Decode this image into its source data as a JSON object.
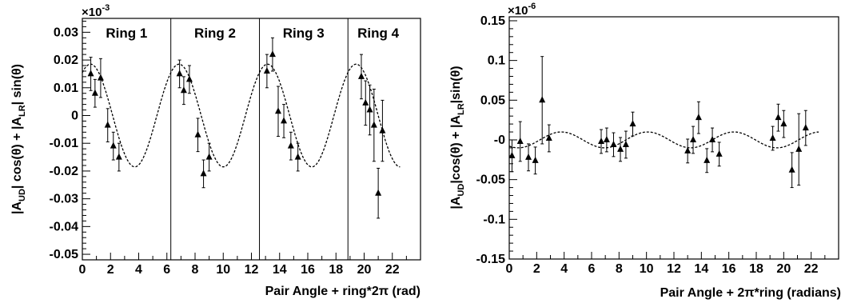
{
  "chart_data": [
    {
      "type": "scatter",
      "xlabel": "Pair Angle + ring*2π (rad)",
      "ylabel_parts": {
        "a": "|A",
        "a_sub": "UD",
        "b": "| cos(θ) + |A",
        "b_sub": "LR",
        "c": "| sin(θ)"
      },
      "exponent": {
        "base": "×10",
        "power": "-3"
      },
      "xlim": [
        0,
        24
      ],
      "ylim": [
        -0.052,
        0.035
      ],
      "xticks": [
        0,
        2,
        4,
        6,
        8,
        10,
        12,
        14,
        16,
        18,
        20,
        22
      ],
      "yticks": [
        -0.05,
        -0.04,
        -0.03,
        -0.02,
        -0.01,
        0,
        0.01,
        0.02,
        0.03
      ],
      "ytick_labels": [
        "-0.05",
        "-0.04",
        "-0.03",
        "-0.02",
        "-0.01",
        "0",
        "0.01",
        "0.02",
        "0.03"
      ],
      "ring_dividers": [
        6.28,
        12.57,
        18.85
      ],
      "rings": [
        {
          "label": "Ring 1",
          "x": 3.14
        },
        {
          "label": "Ring 2",
          "x": 9.42
        },
        {
          "label": "Ring 3",
          "x": 15.7
        },
        {
          "label": "Ring 4",
          "x": 21.0
        }
      ],
      "fit": {
        "style": "dashed",
        "amplitude": 0.0185,
        "phase": 0.58,
        "period": 6.283
      },
      "points": [
        {
          "x": 0.6,
          "y": 0.015,
          "err": 0.006
        },
        {
          "x": 0.9,
          "y": 0.008,
          "err": 0.005
        },
        {
          "x": 1.3,
          "y": 0.0135,
          "err": 0.007
        },
        {
          "x": 1.8,
          "y": -0.0035,
          "err": 0.006
        },
        {
          "x": 2.2,
          "y": -0.011,
          "err": 0.005
        },
        {
          "x": 2.6,
          "y": -0.015,
          "err": 0.005
        },
        {
          "x": 6.9,
          "y": 0.015,
          "err": 0.005
        },
        {
          "x": 7.2,
          "y": 0.009,
          "err": 0.005
        },
        {
          "x": 7.6,
          "y": 0.013,
          "err": 0.005
        },
        {
          "x": 8.2,
          "y": -0.007,
          "err": 0.006
        },
        {
          "x": 8.6,
          "y": -0.021,
          "err": 0.005
        },
        {
          "x": 9.0,
          "y": -0.015,
          "err": 0.005
        },
        {
          "x": 13.1,
          "y": 0.016,
          "err": 0.006
        },
        {
          "x": 13.5,
          "y": 0.022,
          "err": 0.006
        },
        {
          "x": 13.9,
          "y": 0.0015,
          "err": 0.009
        },
        {
          "x": 14.3,
          "y": -0.002,
          "err": 0.006
        },
        {
          "x": 14.8,
          "y": -0.011,
          "err": 0.005
        },
        {
          "x": 15.3,
          "y": -0.015,
          "err": 0.005
        },
        {
          "x": 19.8,
          "y": 0.014,
          "err": 0.008
        },
        {
          "x": 20.1,
          "y": 0.0045,
          "err": 0.008
        },
        {
          "x": 20.4,
          "y": 0.002,
          "err": 0.009
        },
        {
          "x": 20.7,
          "y": -0.0035,
          "err": 0.013
        },
        {
          "x": 21.0,
          "y": -0.028,
          "err": 0.009
        },
        {
          "x": 21.3,
          "y": -0.0055,
          "err": 0.011
        }
      ]
    },
    {
      "type": "scatter",
      "xlabel": "Pair Angle + 2π*ring (radians)",
      "ylabel_parts": {
        "a": "|A",
        "a_sub": "UD",
        "b": "|cos(θ) + |A",
        "b_sub": "LR",
        "c": "|sin(θ)"
      },
      "exponent": {
        "base": "×10",
        "power": "-6"
      },
      "xlim": [
        0,
        24
      ],
      "ylim": [
        -0.15,
        0.155
      ],
      "xticks": [
        0,
        2,
        4,
        6,
        8,
        10,
        12,
        14,
        16,
        18,
        20,
        22
      ],
      "yticks": [
        -0.15,
        -0.1,
        -0.05,
        0,
        0.05,
        0.1,
        0.15
      ],
      "ytick_labels": [
        "-0.15",
        "-0.1",
        "-0.05",
        "-0",
        "0.05",
        "0.1",
        "0.15"
      ],
      "fit": {
        "style": "dashed",
        "amplitude": 0.01,
        "phase": 3.8,
        "period": 6.283
      },
      "points": [
        {
          "x": 0.2,
          "y": -0.02,
          "err": 0.02
        },
        {
          "x": 0.8,
          "y": -0.002,
          "err": 0.025
        },
        {
          "x": 1.4,
          "y": -0.022,
          "err": 0.017
        },
        {
          "x": 1.9,
          "y": -0.026,
          "err": 0.017
        },
        {
          "x": 2.4,
          "y": 0.05,
          "err": 0.055
        },
        {
          "x": 2.9,
          "y": 0.002,
          "err": 0.017
        },
        {
          "x": 6.7,
          "y": -0.002,
          "err": 0.015
        },
        {
          "x": 7.1,
          "y": 0.0,
          "err": 0.015
        },
        {
          "x": 7.6,
          "y": -0.006,
          "err": 0.015
        },
        {
          "x": 8.1,
          "y": -0.012,
          "err": 0.015
        },
        {
          "x": 8.5,
          "y": -0.006,
          "err": 0.017
        },
        {
          "x": 9.0,
          "y": 0.02,
          "err": 0.015
        },
        {
          "x": 13.0,
          "y": -0.014,
          "err": 0.015
        },
        {
          "x": 13.4,
          "y": 0.0,
          "err": 0.017
        },
        {
          "x": 13.8,
          "y": 0.028,
          "err": 0.02
        },
        {
          "x": 14.4,
          "y": -0.026,
          "err": 0.015
        },
        {
          "x": 14.8,
          "y": 0.0,
          "err": 0.015
        },
        {
          "x": 15.3,
          "y": -0.018,
          "err": 0.015
        },
        {
          "x": 19.2,
          "y": 0.002,
          "err": 0.015
        },
        {
          "x": 19.6,
          "y": 0.028,
          "err": 0.017
        },
        {
          "x": 20.0,
          "y": 0.02,
          "err": 0.017
        },
        {
          "x": 20.6,
          "y": -0.038,
          "err": 0.022
        },
        {
          "x": 21.1,
          "y": -0.012,
          "err": 0.045
        },
        {
          "x": 21.6,
          "y": 0.015,
          "err": 0.022
        }
      ]
    }
  ]
}
